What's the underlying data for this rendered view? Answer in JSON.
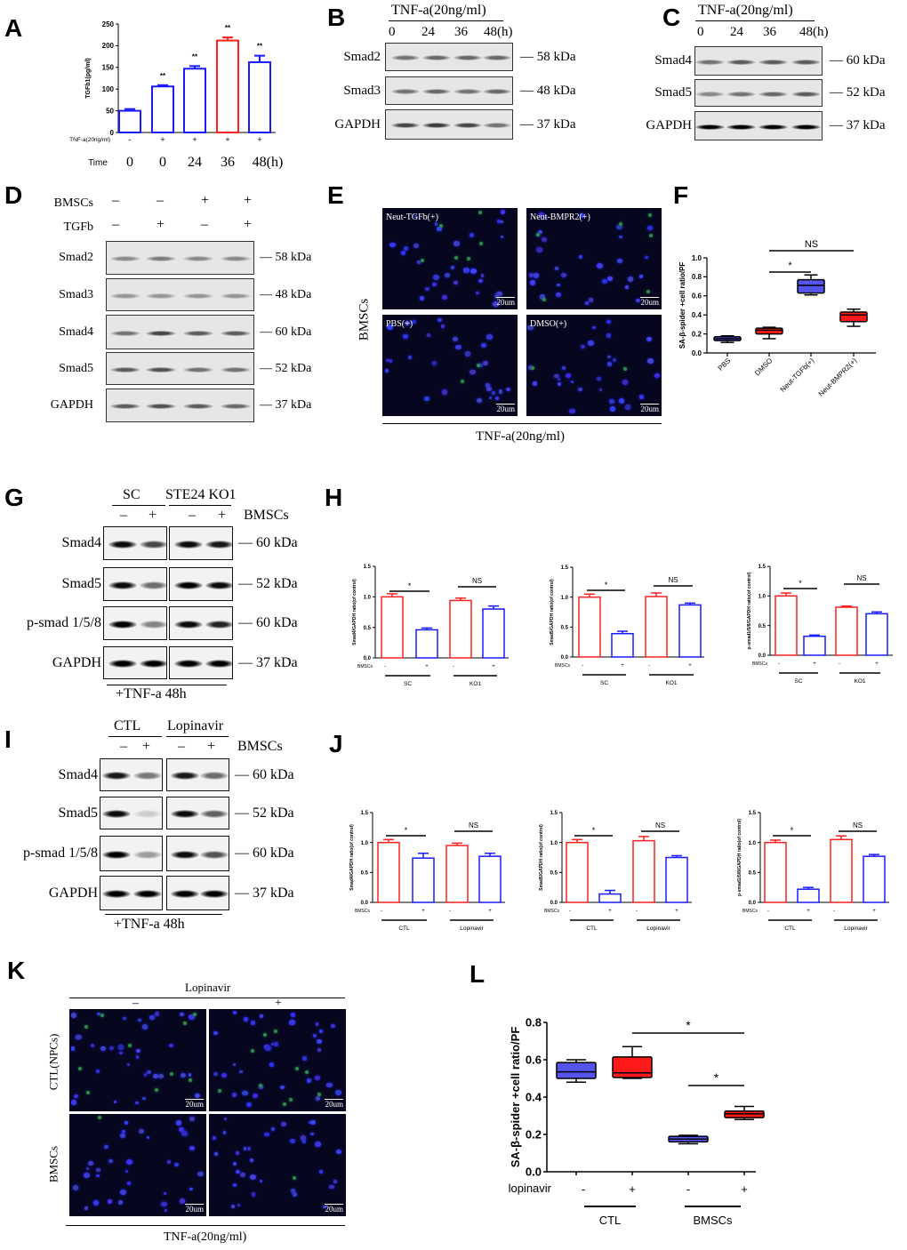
{
  "panel_letters": [
    "A",
    "B",
    "C",
    "D",
    "E",
    "F",
    "G",
    "H",
    "I",
    "J",
    "K",
    "L"
  ],
  "chart_data": [
    {
      "id": "A",
      "type": "bar",
      "title": "",
      "ylabel": "TGFb1(pg/ml)",
      "ylim": [
        0,
        250
      ],
      "yticks": [
        "0",
        "50",
        "100",
        "150",
        "200",
        "250"
      ],
      "row_labels": [
        "TNF-a(20ng/ml)",
        "Time"
      ],
      "treatment": [
        "-",
        "+",
        "+",
        "+",
        "+"
      ],
      "time": [
        "0",
        "0",
        "24",
        "36",
        "48(h)"
      ],
      "values": [
        50,
        106,
        147,
        212,
        162
      ],
      "errors": [
        4,
        3,
        6,
        7,
        15
      ],
      "colors": [
        "#1a1aff",
        "#1a1aff",
        "#1a1aff",
        "#ff2020",
        "#1a1aff"
      ],
      "annotations": [
        "",
        "**",
        "**",
        "**",
        "**"
      ]
    },
    {
      "id": "F",
      "type": "box",
      "ylabel": "SA-β-spider +cell ratio/PF",
      "ylim": [
        0,
        1.0
      ],
      "yticks": [
        "0.0",
        "0.2",
        "0.4",
        "0.6",
        "0.8",
        "1.0"
      ],
      "categories": [
        "PBS",
        "DMSO",
        "Neut-TGFb(+)",
        "Neut-BMPR2(+)"
      ],
      "boxes": [
        {
          "min": 0.11,
          "q1": 0.13,
          "median": 0.15,
          "q3": 0.17,
          "max": 0.18
        },
        {
          "min": 0.15,
          "q1": 0.2,
          "median": 0.24,
          "q3": 0.26,
          "max": 0.27
        },
        {
          "min": 0.61,
          "q1": 0.63,
          "median": 0.71,
          "q3": 0.77,
          "max": 0.82
        },
        {
          "min": 0.28,
          "q1": 0.33,
          "median": 0.4,
          "q3": 0.43,
          "max": 0.46
        }
      ],
      "colors": [
        "#5555ee",
        "#ff1a1a",
        "#5555ee",
        "#ff1a1a"
      ],
      "significance": [
        {
          "from": 1,
          "to": 2,
          "label": "*"
        },
        {
          "from": 1,
          "to": 3,
          "label": "NS"
        }
      ]
    },
    {
      "id": "H1",
      "type": "bar",
      "ylabel": "Smad4/GAPDH ratio(of control)",
      "ylim": [
        0,
        1.5
      ],
      "yticks": [
        "0.0",
        "0.5",
        "1.0",
        "1.5"
      ],
      "row_label": "BMSCs",
      "signs": [
        "-",
        "+",
        "-",
        "+"
      ],
      "groups": [
        "SC",
        "KO1"
      ],
      "values": [
        1.0,
        0.46,
        0.94,
        0.8
      ],
      "errors": [
        0.05,
        0.03,
        0.04,
        0.05
      ],
      "colors": [
        "#ff2020",
        "#1a1aff",
        "#ff2020",
        "#1a1aff"
      ],
      "significance": [
        {
          "from": 0,
          "to": 1,
          "label": "*"
        },
        {
          "from": 2,
          "to": 3,
          "label": "NS"
        }
      ]
    },
    {
      "id": "H2",
      "type": "bar",
      "ylabel": "Smad5/GAPDH ratio(of control)",
      "ylim": [
        0,
        1.5
      ],
      "yticks": [
        "0.0",
        "0.5",
        "1.0",
        "1.5"
      ],
      "row_label": "BMSCs",
      "signs": [
        "-",
        "+",
        "-",
        "+"
      ],
      "groups": [
        "SC",
        "KO1"
      ],
      "values": [
        1.0,
        0.39,
        1.01,
        0.87
      ],
      "errors": [
        0.05,
        0.04,
        0.06,
        0.03
      ],
      "colors": [
        "#ff2020",
        "#1a1aff",
        "#ff2020",
        "#1a1aff"
      ],
      "significance": [
        {
          "from": 0,
          "to": 1,
          "label": "*"
        },
        {
          "from": 2,
          "to": 3,
          "label": "NS"
        }
      ]
    },
    {
      "id": "H3",
      "type": "bar",
      "ylabel": "p-smad1/5/8/GAPDH ratio(of control)",
      "ylim": [
        0,
        1.5
      ],
      "yticks": [
        "0.0",
        "0.5",
        "1.0",
        "1.5"
      ],
      "row_label": "BMSCs",
      "signs": [
        "-",
        "+",
        "-",
        "+"
      ],
      "groups": [
        "SC",
        "KO1"
      ],
      "values": [
        1.0,
        0.32,
        0.81,
        0.7
      ],
      "errors": [
        0.05,
        0.02,
        0.02,
        0.03
      ],
      "colors": [
        "#ff2020",
        "#1a1aff",
        "#ff2020",
        "#1a1aff"
      ],
      "significance": [
        {
          "from": 0,
          "to": 1,
          "label": "*"
        },
        {
          "from": 2,
          "to": 3,
          "label": "NS"
        }
      ]
    },
    {
      "id": "J1",
      "type": "bar",
      "ylabel": "Smad4/GAPDH ratio(of control)",
      "ylim": [
        0,
        1.5
      ],
      "yticks": [
        "0.0",
        "0.5",
        "1.0",
        "1.5"
      ],
      "row_label": "BMSCs",
      "signs": [
        "-",
        "+",
        "-",
        "+"
      ],
      "groups": [
        "CTL",
        "Lopinavir"
      ],
      "values": [
        1.0,
        0.74,
        0.95,
        0.77
      ],
      "errors": [
        0.05,
        0.08,
        0.04,
        0.05
      ],
      "colors": [
        "#ff2020",
        "#1a1aff",
        "#ff2020",
        "#1a1aff"
      ],
      "significance": [
        {
          "from": 0,
          "to": 1,
          "label": "*"
        },
        {
          "from": 2,
          "to": 3,
          "label": "NS"
        }
      ]
    },
    {
      "id": "J2",
      "type": "bar",
      "ylabel": "Smad5/GAPDH ratio(of control)",
      "ylim": [
        0,
        1.5
      ],
      "yticks": [
        "0.0",
        "0.5",
        "1.0",
        "1.5"
      ],
      "row_label": "BMSCs",
      "signs": [
        "-",
        "+",
        "-",
        "+"
      ],
      "groups": [
        "CTL",
        "Lopinavir"
      ],
      "values": [
        1.0,
        0.14,
        1.03,
        0.75
      ],
      "errors": [
        0.05,
        0.06,
        0.07,
        0.03
      ],
      "colors": [
        "#ff2020",
        "#1a1aff",
        "#ff2020",
        "#1a1aff"
      ],
      "significance": [
        {
          "from": 0,
          "to": 1,
          "label": "*"
        },
        {
          "from": 2,
          "to": 3,
          "label": "NS"
        }
      ]
    },
    {
      "id": "J3",
      "type": "bar",
      "ylabel": "p-smad1/5/8/GAPDH ratio(of control)",
      "ylim": [
        0,
        1.5
      ],
      "yticks": [
        "0.0",
        "0.5",
        "1.0",
        "1.5"
      ],
      "row_label": "BMSCs",
      "signs": [
        "-",
        "+",
        "-",
        "+"
      ],
      "groups": [
        "CTL",
        "Lopinavir"
      ],
      "values": [
        1.0,
        0.22,
        1.05,
        0.77
      ],
      "errors": [
        0.04,
        0.03,
        0.06,
        0.03
      ],
      "colors": [
        "#ff2020",
        "#1a1aff",
        "#ff2020",
        "#1a1aff"
      ],
      "significance": [
        {
          "from": 0,
          "to": 1,
          "label": "*"
        },
        {
          "from": 2,
          "to": 3,
          "label": "NS"
        }
      ]
    },
    {
      "id": "L",
      "type": "box",
      "ylabel": "SA-β-spider +cell ratio/PF",
      "ylim": [
        0,
        0.8
      ],
      "yticks": [
        "0.0",
        "0.2",
        "0.4",
        "0.6",
        "0.8"
      ],
      "row_label": "lopinavir",
      "signs": [
        "-",
        "+",
        "-",
        "+"
      ],
      "groups": [
        "CTL",
        "BMSCs"
      ],
      "boxes": [
        {
          "min": 0.48,
          "q1": 0.5,
          "median": 0.535,
          "q3": 0.585,
          "max": 0.6
        },
        {
          "min": 0.5,
          "q1": 0.505,
          "median": 0.53,
          "q3": 0.615,
          "max": 0.67
        },
        {
          "min": 0.15,
          "q1": 0.16,
          "median": 0.175,
          "q3": 0.19,
          "max": 0.195
        },
        {
          "min": 0.28,
          "q1": 0.29,
          "median": 0.31,
          "q3": 0.325,
          "max": 0.35
        }
      ],
      "colors": [
        "#5555ee",
        "#ff1a1a",
        "#5555ee",
        "#ff1a1a"
      ],
      "significance": [
        {
          "from": 1,
          "to": 3,
          "label": "*"
        },
        {
          "from": 2,
          "to": 3,
          "label": "*"
        }
      ]
    }
  ],
  "blots": {
    "B": {
      "header": "TNF-a(20ng/ml)",
      "lanes": [
        "0",
        "24",
        "36",
        "48(h)"
      ],
      "rows": [
        {
          "label": "Smad2",
          "kda": "58 kDa",
          "bands": [
            0.5,
            0.55,
            0.55,
            0.55
          ]
        },
        {
          "label": "Smad3",
          "kda": "48 kDa",
          "bands": [
            0.5,
            0.55,
            0.5,
            0.55
          ]
        },
        {
          "label": "GAPDH",
          "kda": "37 kDa",
          "bands": [
            0.7,
            0.75,
            0.7,
            0.5
          ]
        }
      ]
    },
    "C": {
      "header": "TNF-a(20ng/ml)",
      "lanes": [
        "0",
        "24",
        "36",
        "48(h)"
      ],
      "rows": [
        {
          "label": "Smad4",
          "kda": "60 kDa",
          "bands": [
            0.5,
            0.6,
            0.6,
            0.6
          ]
        },
        {
          "label": "Smad5",
          "kda": "52 kDa",
          "bands": [
            0.4,
            0.5,
            0.55,
            0.6
          ]
        },
        {
          "label": "GAPDH",
          "kda": "37 kDa",
          "bands": [
            1,
            1,
            1,
            1
          ]
        }
      ]
    },
    "D": {
      "conditions": [
        {
          "label": "BMSCs",
          "signs": [
            "–",
            "–",
            "+",
            "+"
          ]
        },
        {
          "label": "TGFb",
          "signs": [
            "–",
            "+",
            "–",
            "+"
          ]
        }
      ],
      "rows": [
        {
          "label": "Smad2",
          "kda": "58 kDa",
          "bands": [
            0.4,
            0.45,
            0.4,
            0.4
          ]
        },
        {
          "label": "Smad3",
          "kda": "48 kDa",
          "bands": [
            0.35,
            0.35,
            0.35,
            0.35
          ]
        },
        {
          "label": "Smad4",
          "kda": "60 kDa",
          "bands": [
            0.5,
            0.7,
            0.6,
            0.6
          ]
        },
        {
          "label": "Smad5",
          "kda": "52 kDa",
          "bands": [
            0.6,
            0.65,
            0.5,
            0.5
          ]
        },
        {
          "label": "GAPDH",
          "kda": "37 kDa",
          "bands": [
            0.6,
            0.65,
            0.6,
            0.55
          ]
        }
      ]
    },
    "G": {
      "groups": [
        "SC",
        "STE24 KO1"
      ],
      "signs": [
        "–",
        "+",
        "–",
        "+"
      ],
      "side_label": "BMSCs",
      "footer": "+TNF-a 48h",
      "rows": [
        {
          "label": "Smad4",
          "kda": "60 kDa",
          "bands": [
            0.95,
            0.7,
            0.95,
            0.9
          ]
        },
        {
          "label": "Smad5",
          "kda": "52 kDa",
          "bands": [
            0.95,
            0.55,
            1,
            0.95
          ]
        },
        {
          "label": "p-smad 1/5/8",
          "kda": "60 kDa",
          "bands": [
            1,
            0.45,
            0.95,
            0.85
          ]
        },
        {
          "label": "GAPDH",
          "kda": "37 kDa",
          "bands": [
            1,
            1,
            1,
            1
          ]
        }
      ]
    },
    "I": {
      "groups": [
        "CTL",
        "Lopinavir"
      ],
      "signs": [
        "–",
        "+",
        "–",
        "+"
      ],
      "side_label": "BMSCs",
      "footer": "+TNF-a 48h",
      "rows": [
        {
          "label": "Smad4",
          "kda": "60 kDa",
          "bands": [
            0.9,
            0.5,
            0.9,
            0.55
          ]
        },
        {
          "label": "Smad5",
          "kda": "52 kDa",
          "bands": [
            0.95,
            0.15,
            0.95,
            0.6
          ]
        },
        {
          "label": "p-smad 1/5/8",
          "kda": "60 kDa",
          "bands": [
            1,
            0.35,
            0.95,
            0.65
          ]
        },
        {
          "label": "GAPDH",
          "kda": "37 kDa",
          "bands": [
            1,
            1,
            1,
            1
          ]
        }
      ]
    }
  },
  "images": {
    "E": {
      "panels": [
        "Neut-TGFb(+)",
        "Neut-BMPR2(+)",
        "PBS(+)",
        "DMSO(+)"
      ],
      "scale": "20um",
      "side_label": "BMSCs",
      "footer": "TNF-a(20ng/ml)"
    },
    "K": {
      "header": "Lopinavir",
      "columns": [
        "–",
        "+"
      ],
      "rows": [
        "CTL(NPCs)",
        "BMSCs"
      ],
      "scale": "20um",
      "footer": "TNF-a(20ng/ml)"
    }
  }
}
